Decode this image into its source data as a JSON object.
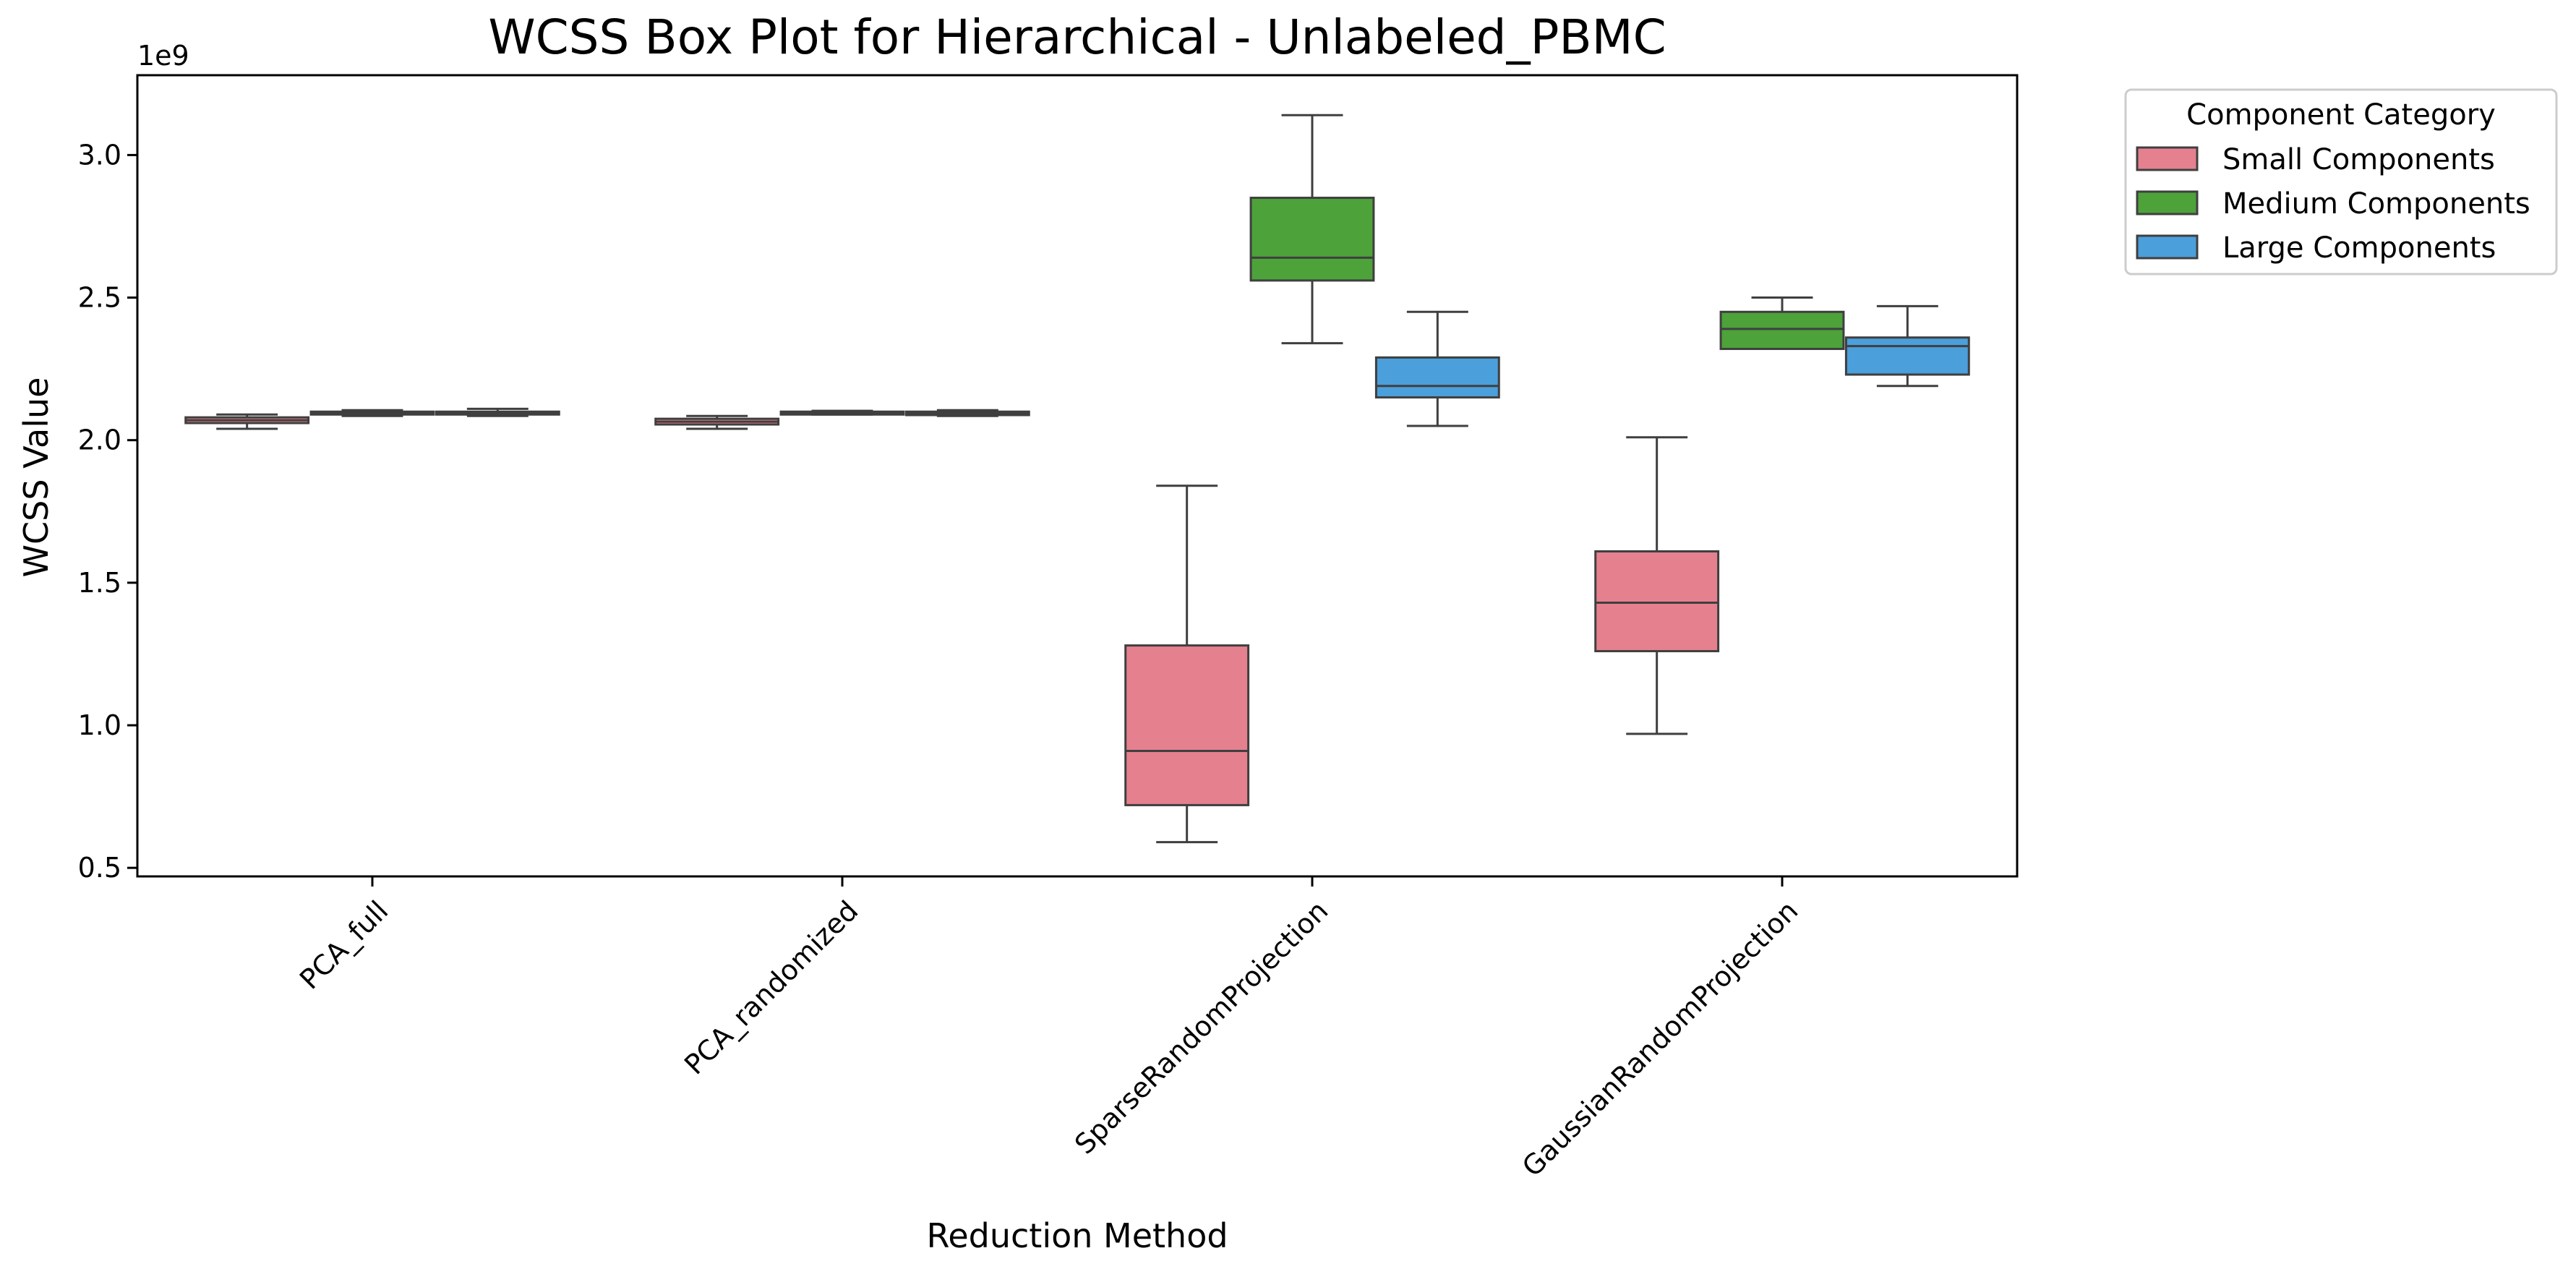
{
  "chart_data": {
    "type": "box",
    "title": "WCSS Box Plot for Hierarchical - Unlabeled_PBMC",
    "xlabel": "Reduction Method",
    "ylabel": "WCSS Value",
    "y_offset_label": "1e9",
    "ylim": [
      0.47,
      3.28
    ],
    "yticks": [
      0.5,
      1.0,
      1.5,
      2.0,
      2.5,
      3.0
    ],
    "ytick_labels": [
      "0.5",
      "1.0",
      "1.5",
      "2.0",
      "2.5",
      "3.0"
    ],
    "categories": [
      "PCA_full",
      "PCA_randomized",
      "SparseRandomProjection",
      "GaussianRandomProjection"
    ],
    "legend": {
      "title": "Component Category",
      "placement": "outside upper right"
    },
    "series": [
      {
        "name": "Small Components",
        "color": "#e5808f",
        "boxes": [
          {
            "whislo": 2.04,
            "q1": 2.06,
            "med": 2.07,
            "q3": 2.08,
            "whishi": 2.09
          },
          {
            "whislo": 2.04,
            "q1": 2.055,
            "med": 2.065,
            "q3": 2.075,
            "whishi": 2.085
          },
          {
            "whislo": 0.59,
            "q1": 0.72,
            "med": 0.91,
            "q3": 1.28,
            "whishi": 1.84
          },
          {
            "whislo": 0.97,
            "q1": 1.26,
            "med": 1.43,
            "q3": 1.61,
            "whishi": 2.01
          }
        ]
      },
      {
        "name": "Medium Components",
        "color": "#4da23a",
        "boxes": [
          {
            "whislo": 2.085,
            "q1": 2.09,
            "med": 2.095,
            "q3": 2.1,
            "whishi": 2.105
          },
          {
            "whislo": 2.09,
            "q1": 2.093,
            "med": 2.097,
            "q3": 2.1,
            "whishi": 2.103
          },
          {
            "whislo": 2.34,
            "q1": 2.56,
            "med": 2.64,
            "q3": 2.85,
            "whishi": 3.14
          },
          {
            "whislo": 2.32,
            "q1": 2.32,
            "med": 2.39,
            "q3": 2.45,
            "whishi": 2.5
          }
        ]
      },
      {
        "name": "Large Components",
        "color": "#4b9fdb",
        "boxes": [
          {
            "whislo": 2.085,
            "q1": 2.09,
            "med": 2.095,
            "q3": 2.1,
            "whishi": 2.11
          },
          {
            "whislo": 2.085,
            "q1": 2.088,
            "med": 2.095,
            "q3": 2.1,
            "whishi": 2.105
          },
          {
            "whislo": 2.05,
            "q1": 2.15,
            "med": 2.19,
            "q3": 2.29,
            "whishi": 2.45
          },
          {
            "whislo": 2.19,
            "q1": 2.23,
            "med": 2.33,
            "q3": 2.36,
            "whishi": 2.47
          }
        ]
      }
    ]
  }
}
